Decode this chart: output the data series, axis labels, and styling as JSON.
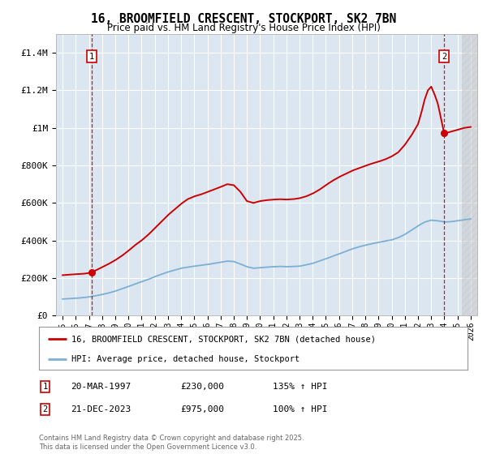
{
  "title1": "16, BROOMFIELD CRESCENT, STOCKPORT, SK2 7BN",
  "title2": "Price paid vs. HM Land Registry's House Price Index (HPI)",
  "ylim": [
    0,
    1500000
  ],
  "xlim": [
    1994.5,
    2026.5
  ],
  "bg_color": "#dce6f1",
  "legend_label_red": "16, BROOMFIELD CRESCENT, STOCKPORT, SK2 7BN (detached house)",
  "legend_label_blue": "HPI: Average price, detached house, Stockport",
  "annotation1_label": "1",
  "annotation1_date": "20-MAR-1997",
  "annotation1_price": "£230,000",
  "annotation1_hpi": "135% ↑ HPI",
  "annotation2_label": "2",
  "annotation2_date": "21-DEC-2023",
  "annotation2_price": "£975,000",
  "annotation2_hpi": "100% ↑ HPI",
  "footer": "Contains HM Land Registry data © Crown copyright and database right 2025.\nThis data is licensed under the Open Government Licence v3.0.",
  "yticks": [
    0,
    200000,
    400000,
    600000,
    800000,
    1000000,
    1200000,
    1400000
  ],
  "ytick_labels": [
    "£0",
    "£200K",
    "£400K",
    "£600K",
    "£800K",
    "£1M",
    "£1.2M",
    "£1.4M"
  ],
  "sale1_x": 1997.22,
  "sale1_y": 230000,
  "sale2_x": 2023.97,
  "sale2_y": 975000,
  "red_color": "#cc0000",
  "blue_color": "#7bafd4",
  "hatch_start": 2025.3,
  "hatch_end": 2026.6,
  "red_keypoints_x": [
    1995.0,
    1995.5,
    1996.0,
    1996.5,
    1997.0,
    1997.22,
    1997.5,
    1998.0,
    1998.5,
    1999.0,
    1999.5,
    2000.0,
    2000.5,
    2001.0,
    2001.5,
    2002.0,
    2002.5,
    2003.0,
    2003.5,
    2004.0,
    2004.5,
    2005.0,
    2005.5,
    2006.0,
    2006.5,
    2007.0,
    2007.5,
    2008.0,
    2008.5,
    2009.0,
    2009.5,
    2010.0,
    2010.5,
    2011.0,
    2011.5,
    2012.0,
    2012.5,
    2013.0,
    2013.5,
    2014.0,
    2014.5,
    2015.0,
    2015.5,
    2016.0,
    2016.5,
    2017.0,
    2017.5,
    2018.0,
    2018.5,
    2019.0,
    2019.5,
    2020.0,
    2020.5,
    2021.0,
    2021.5,
    2022.0,
    2022.25,
    2022.5,
    2022.75,
    2023.0,
    2023.25,
    2023.5,
    2023.75,
    2023.97,
    2024.0,
    2024.25,
    2024.5,
    2024.75,
    2025.0,
    2025.5,
    2026.0
  ],
  "red_keypoints_y": [
    215000,
    218000,
    220000,
    222000,
    226000,
    230000,
    240000,
    258000,
    275000,
    295000,
    318000,
    345000,
    375000,
    400000,
    430000,
    465000,
    500000,
    535000,
    565000,
    595000,
    620000,
    635000,
    645000,
    658000,
    672000,
    685000,
    700000,
    695000,
    660000,
    610000,
    600000,
    610000,
    615000,
    618000,
    620000,
    618000,
    620000,
    625000,
    635000,
    650000,
    670000,
    695000,
    718000,
    738000,
    755000,
    772000,
    785000,
    798000,
    810000,
    820000,
    832000,
    848000,
    870000,
    910000,
    960000,
    1020000,
    1080000,
    1150000,
    1200000,
    1220000,
    1180000,
    1130000,
    1050000,
    975000,
    970000,
    975000,
    980000,
    985000,
    990000,
    1000000,
    1005000
  ],
  "blue_keypoints_x": [
    1995.0,
    1995.5,
    1996.0,
    1996.5,
    1997.0,
    1997.5,
    1998.0,
    1998.5,
    1999.0,
    1999.5,
    2000.0,
    2000.5,
    2001.0,
    2001.5,
    2002.0,
    2002.5,
    2003.0,
    2003.5,
    2004.0,
    2004.5,
    2005.0,
    2005.5,
    2006.0,
    2006.5,
    2007.0,
    2007.5,
    2008.0,
    2008.5,
    2009.0,
    2009.5,
    2010.0,
    2010.5,
    2011.0,
    2011.5,
    2012.0,
    2012.5,
    2013.0,
    2013.5,
    2014.0,
    2014.5,
    2015.0,
    2015.5,
    2016.0,
    2016.5,
    2017.0,
    2017.5,
    2018.0,
    2018.5,
    2019.0,
    2019.5,
    2020.0,
    2020.5,
    2021.0,
    2021.5,
    2022.0,
    2022.5,
    2023.0,
    2023.5,
    2023.97,
    2024.0,
    2024.5,
    2025.0,
    2025.5,
    2026.0
  ],
  "blue_keypoints_y": [
    88000,
    90000,
    92000,
    95000,
    99000,
    105000,
    112000,
    120000,
    130000,
    142000,
    155000,
    168000,
    180000,
    192000,
    207000,
    220000,
    232000,
    242000,
    252000,
    258000,
    263000,
    268000,
    272000,
    278000,
    284000,
    290000,
    288000,
    275000,
    260000,
    252000,
    255000,
    258000,
    260000,
    262000,
    260000,
    261000,
    263000,
    270000,
    278000,
    290000,
    302000,
    316000,
    328000,
    342000,
    355000,
    366000,
    375000,
    383000,
    390000,
    397000,
    403000,
    415000,
    432000,
    455000,
    478000,
    498000,
    508000,
    505000,
    500000,
    498000,
    500000,
    505000,
    510000,
    515000
  ]
}
